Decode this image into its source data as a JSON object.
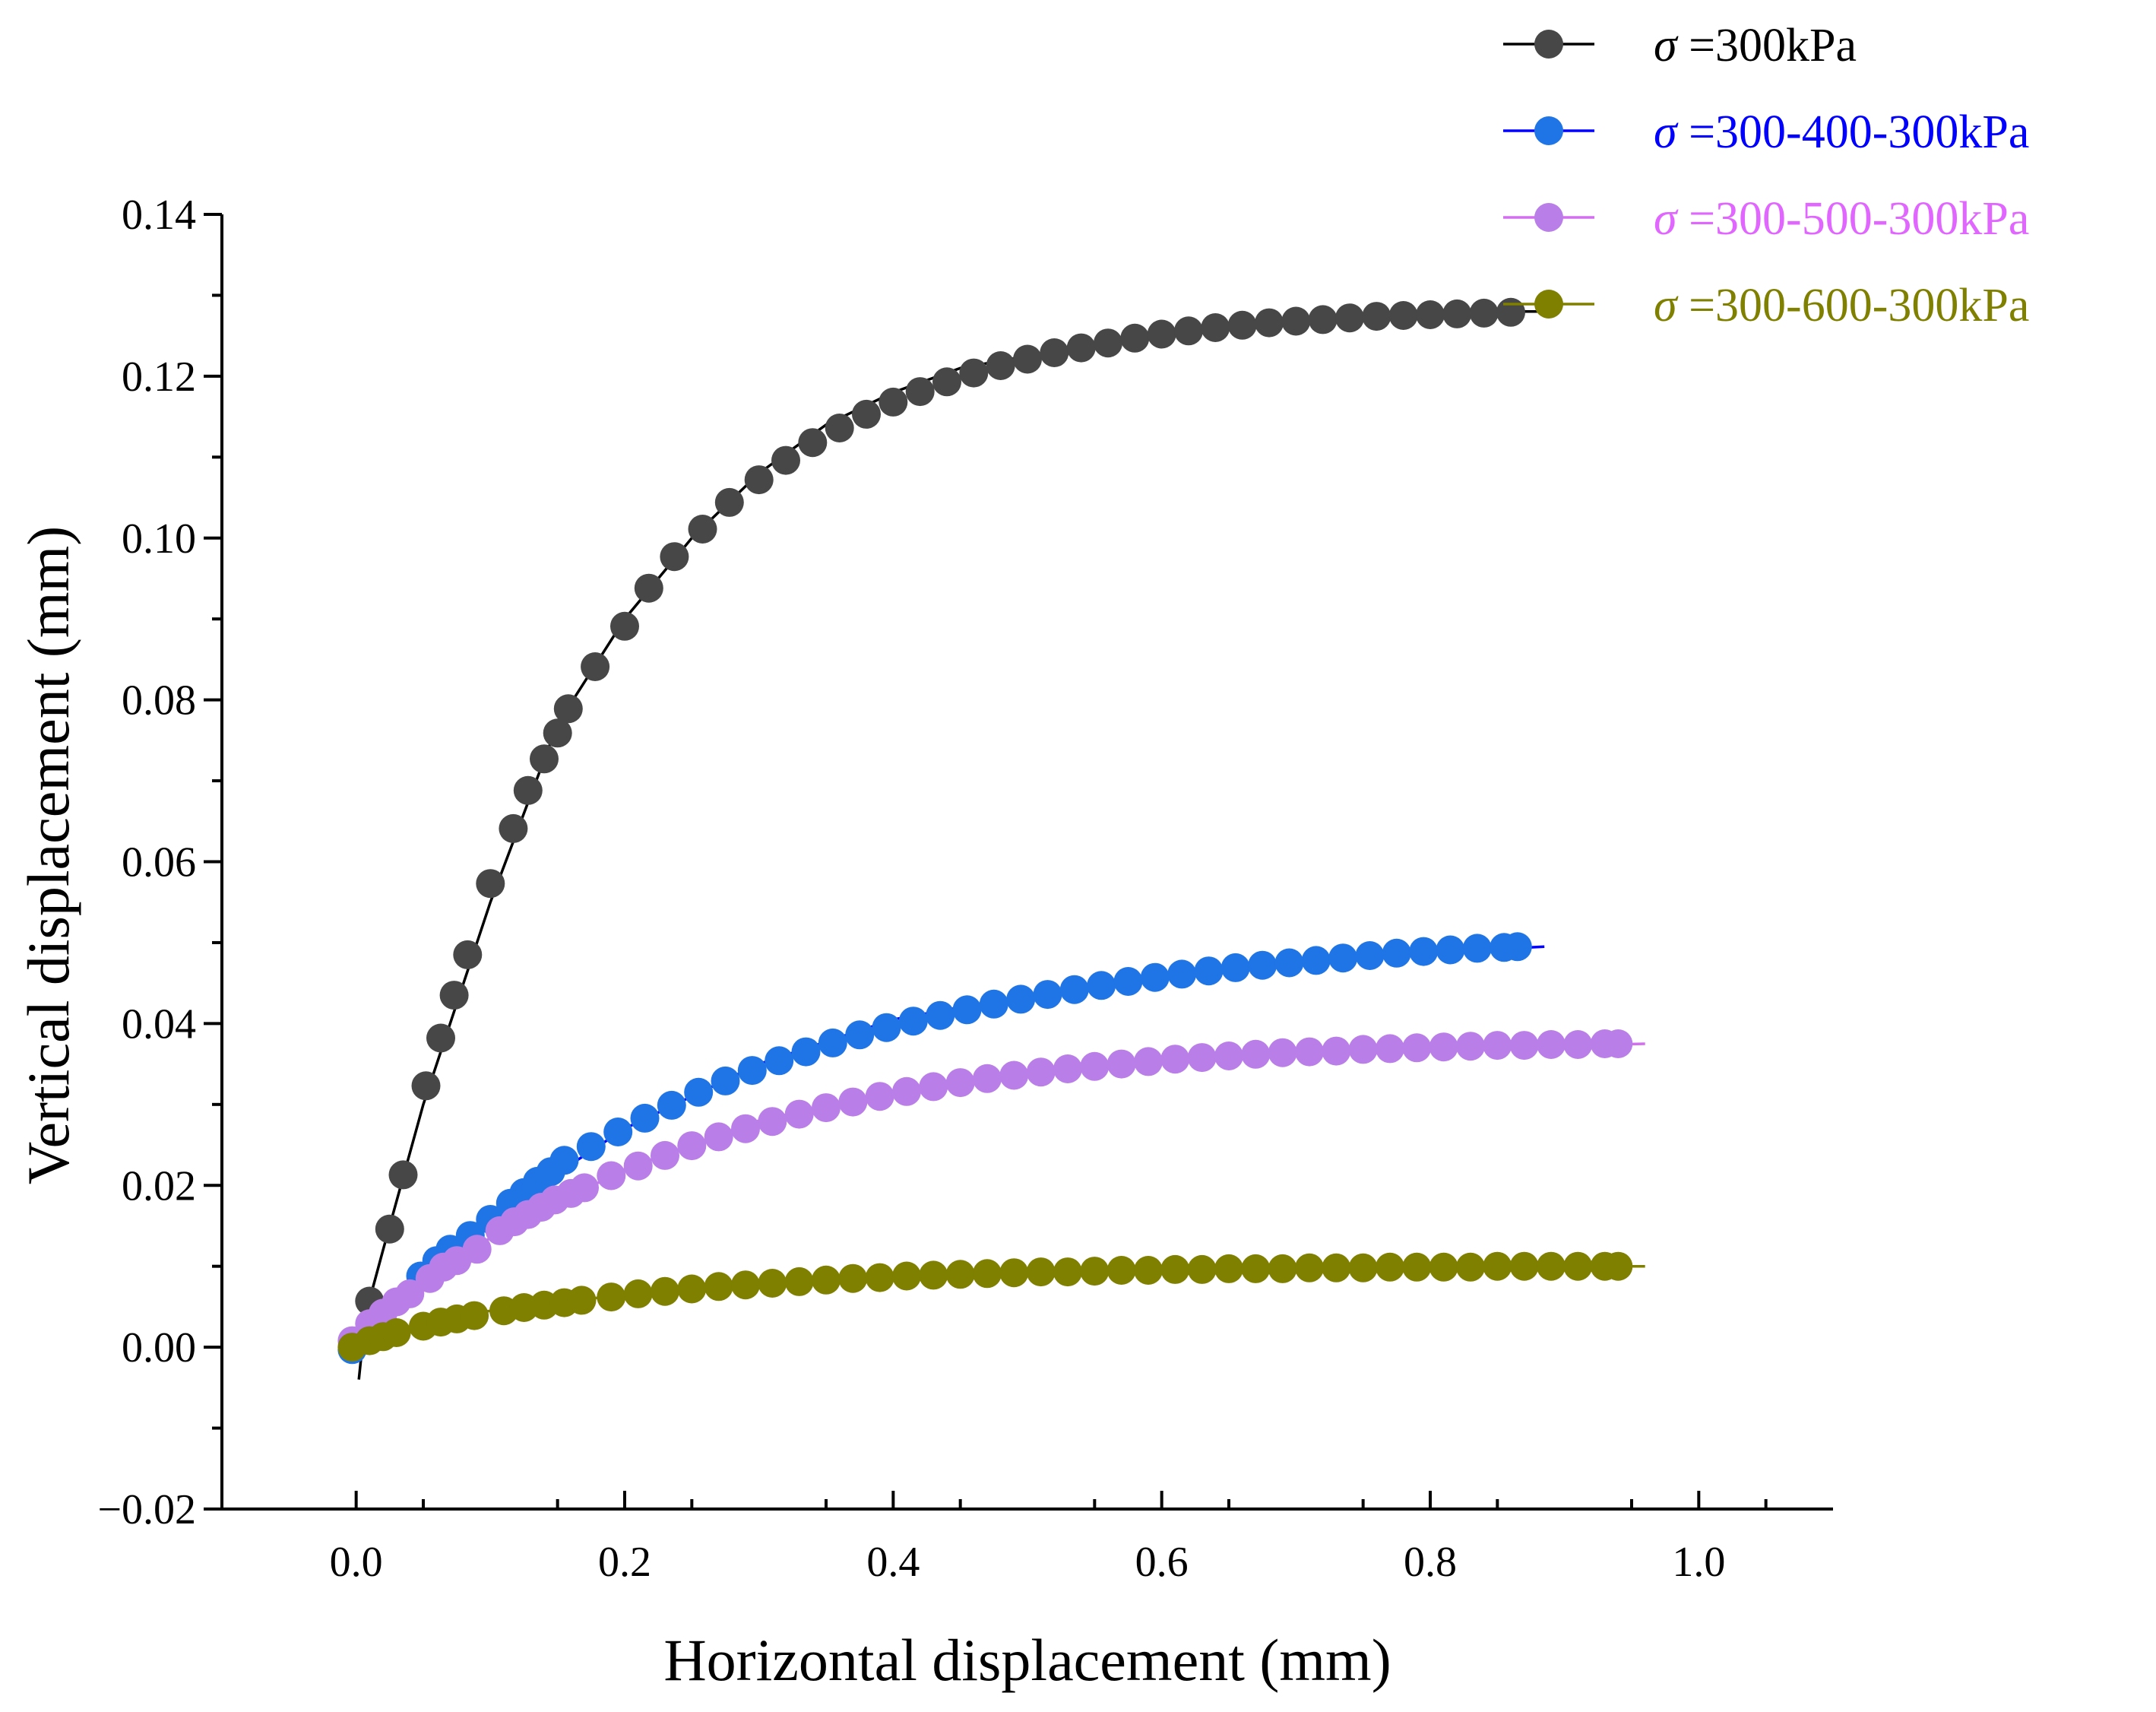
{
  "chart_data": {
    "type": "line",
    "title": "",
    "xlabel": "Horizontal displacement (mm)",
    "ylabel": "Vertical displacement (mm)",
    "xlim": [
      -0.1,
      1.1
    ],
    "ylim": [
      -0.02,
      0.14
    ],
    "xticks": [
      0.0,
      0.2,
      0.4,
      0.6,
      0.8,
      1.0
    ],
    "xtick_labels": [
      "0.0",
      "0.2",
      "0.4",
      "0.6",
      "0.8",
      "1.0"
    ],
    "yticks": [
      -0.02,
      0.0,
      0.02,
      0.04,
      0.06,
      0.08,
      0.1,
      0.12,
      0.14
    ],
    "ytick_labels": [
      "−0.02",
      "0.00",
      "0.02",
      "0.04",
      "0.06",
      "0.08",
      "0.10",
      "0.12",
      "0.14"
    ],
    "grid": false,
    "legend_position": "top-right",
    "series": [
      {
        "name": "σ =300kPa",
        "sigma": "σ",
        "label": " =300kPa",
        "marker_color": "#474747",
        "line_color": "#000000",
        "text_color": "#000000",
        "line_x": [
          0.002,
          0.007,
          0.02,
          0.05,
          0.1,
          0.15,
          0.2,
          0.25,
          0.3,
          0.35,
          0.4,
          0.45,
          0.5,
          0.55,
          0.6,
          0.65,
          0.7,
          0.75,
          0.8,
          0.85,
          0.885
        ],
        "line_y": [
          -0.004,
          0.004,
          0.012,
          0.03,
          0.055,
          0.077,
          0.09,
          0.1,
          0.108,
          0.114,
          0.118,
          0.121,
          0.1225,
          0.124,
          0.1255,
          0.126,
          0.1265,
          0.127,
          0.1275,
          0.128,
          0.128
        ],
        "points": [
          [
            0.01,
            0.0057
          ],
          [
            0.025,
            0.0146
          ],
          [
            0.035,
            0.0213
          ],
          [
            0.052,
            0.0323
          ],
          [
            0.063,
            0.0382
          ],
          [
            0.073,
            0.0435
          ],
          [
            0.083,
            0.0485
          ],
          [
            0.1,
            0.0573
          ],
          [
            0.117,
            0.0641
          ],
          [
            0.128,
            0.0688
          ],
          [
            0.14,
            0.0727
          ],
          [
            0.15,
            0.0759
          ],
          [
            0.158,
            0.0789
          ],
          [
            0.178,
            0.0841
          ],
          [
            0.2,
            0.0891
          ],
          [
            0.218,
            0.0938
          ],
          [
            0.237,
            0.0977
          ],
          [
            0.258,
            0.1011
          ],
          [
            0.278,
            0.1044
          ],
          [
            0.3,
            0.1072
          ],
          [
            0.32,
            0.1096
          ],
          [
            0.34,
            0.1118
          ],
          [
            0.36,
            0.1136
          ],
          [
            0.38,
            0.1153
          ],
          [
            0.4,
            0.1168
          ],
          [
            0.42,
            0.1181
          ],
          [
            0.44,
            0.1193
          ],
          [
            0.46,
            0.1204
          ],
          [
            0.48,
            0.1213
          ],
          [
            0.5,
            0.1221
          ],
          [
            0.52,
            0.1229
          ],
          [
            0.54,
            0.1235
          ],
          [
            0.56,
            0.1241
          ],
          [
            0.58,
            0.1247
          ],
          [
            0.6,
            0.1252
          ],
          [
            0.62,
            0.1256
          ],
          [
            0.64,
            0.126
          ],
          [
            0.66,
            0.1263
          ],
          [
            0.68,
            0.1266
          ],
          [
            0.7,
            0.1268
          ],
          [
            0.72,
            0.127
          ],
          [
            0.74,
            0.1272
          ],
          [
            0.76,
            0.1274
          ],
          [
            0.78,
            0.1275
          ],
          [
            0.8,
            0.1276
          ],
          [
            0.82,
            0.1277
          ],
          [
            0.84,
            0.1278
          ],
          [
            0.86,
            0.1279
          ]
        ]
      },
      {
        "name": "σ =300-400-300kPa",
        "sigma": "σ",
        "label": " =300-400-300kPa",
        "marker_color": "#1f75e6",
        "line_color": "#0000ff",
        "text_color": "#0000ff",
        "line_x": [
          -0.003,
          0.03,
          0.1,
          0.2,
          0.3,
          0.4,
          0.5,
          0.6,
          0.7,
          0.8,
          0.885
        ],
        "line_y": [
          -0.001,
          0.006,
          0.016,
          0.027,
          0.035,
          0.0405,
          0.0435,
          0.0462,
          0.0478,
          0.0488,
          0.0495
        ],
        "points": [
          [
            -0.003,
            -0.0003
          ],
          [
            0.048,
            0.0088
          ],
          [
            0.06,
            0.0107
          ],
          [
            0.07,
            0.0121
          ],
          [
            0.085,
            0.0138
          ],
          [
            0.1,
            0.0158
          ],
          [
            0.115,
            0.0178
          ],
          [
            0.125,
            0.0191
          ],
          [
            0.135,
            0.0205
          ],
          [
            0.145,
            0.0217
          ],
          [
            0.155,
            0.0231
          ],
          [
            0.175,
            0.0248
          ],
          [
            0.195,
            0.0266
          ],
          [
            0.215,
            0.0283
          ],
          [
            0.235,
            0.0299
          ],
          [
            0.255,
            0.0315
          ],
          [
            0.275,
            0.0329
          ],
          [
            0.295,
            0.0342
          ],
          [
            0.315,
            0.0354
          ],
          [
            0.335,
            0.0365
          ],
          [
            0.355,
            0.0376
          ],
          [
            0.375,
            0.0386
          ],
          [
            0.395,
            0.0395
          ],
          [
            0.415,
            0.0403
          ],
          [
            0.435,
            0.041
          ],
          [
            0.455,
            0.0417
          ],
          [
            0.475,
            0.0424
          ],
          [
            0.495,
            0.043
          ],
          [
            0.515,
            0.0436
          ],
          [
            0.535,
            0.0442
          ],
          [
            0.555,
            0.0447
          ],
          [
            0.575,
            0.0452
          ],
          [
            0.595,
            0.0457
          ],
          [
            0.615,
            0.0461
          ],
          [
            0.635,
            0.0465
          ],
          [
            0.655,
            0.0469
          ],
          [
            0.675,
            0.0472
          ],
          [
            0.695,
            0.0475
          ],
          [
            0.715,
            0.0478
          ],
          [
            0.735,
            0.0481
          ],
          [
            0.755,
            0.0484
          ],
          [
            0.775,
            0.0487
          ],
          [
            0.795,
            0.0489
          ],
          [
            0.815,
            0.0491
          ],
          [
            0.835,
            0.0493
          ],
          [
            0.855,
            0.0494
          ],
          [
            0.865,
            0.0495
          ]
        ]
      },
      {
        "name": "σ =300-500-300kPa",
        "sigma": "σ",
        "label": " =300-500-300kPa",
        "marker_color": "#b97ee8",
        "line_color": "#d36ef0",
        "text_color": "#e066ff",
        "line_x": [
          -0.003,
          0.03,
          0.1,
          0.2,
          0.3,
          0.4,
          0.5,
          0.6,
          0.7,
          0.8,
          0.9,
          0.96
        ],
        "line_y": [
          0.0,
          0.006,
          0.0135,
          0.022,
          0.028,
          0.0315,
          0.0338,
          0.0352,
          0.0362,
          0.0368,
          0.0373,
          0.0375
        ],
        "points": [
          [
            -0.003,
            0.0008
          ],
          [
            0.01,
            0.0029
          ],
          [
            0.02,
            0.0042
          ],
          [
            0.03,
            0.0056
          ],
          [
            0.04,
            0.0066
          ],
          [
            0.055,
            0.0085
          ],
          [
            0.065,
            0.0099
          ],
          [
            0.075,
            0.0107
          ],
          [
            0.09,
            0.0121
          ],
          [
            0.107,
            0.0144
          ],
          [
            0.118,
            0.0155
          ],
          [
            0.128,
            0.0164
          ],
          [
            0.138,
            0.0173
          ],
          [
            0.148,
            0.0182
          ],
          [
            0.16,
            0.019
          ],
          [
            0.17,
            0.0197
          ],
          [
            0.19,
            0.0212
          ],
          [
            0.21,
            0.0224
          ],
          [
            0.23,
            0.0237
          ],
          [
            0.25,
            0.0249
          ],
          [
            0.27,
            0.026
          ],
          [
            0.29,
            0.027
          ],
          [
            0.31,
            0.0279
          ],
          [
            0.33,
            0.0288
          ],
          [
            0.35,
            0.0296
          ],
          [
            0.37,
            0.0303
          ],
          [
            0.39,
            0.031
          ],
          [
            0.41,
            0.0316
          ],
          [
            0.43,
            0.0322
          ],
          [
            0.45,
            0.0327
          ],
          [
            0.47,
            0.0332
          ],
          [
            0.49,
            0.0336
          ],
          [
            0.51,
            0.034
          ],
          [
            0.53,
            0.0344
          ],
          [
            0.55,
            0.0347
          ],
          [
            0.57,
            0.035
          ],
          [
            0.59,
            0.0353
          ],
          [
            0.61,
            0.0356
          ],
          [
            0.63,
            0.0358
          ],
          [
            0.65,
            0.036
          ],
          [
            0.67,
            0.0362
          ],
          [
            0.69,
            0.0364
          ],
          [
            0.71,
            0.0365
          ],
          [
            0.73,
            0.0366
          ],
          [
            0.75,
            0.0368
          ],
          [
            0.77,
            0.0369
          ],
          [
            0.79,
            0.037
          ],
          [
            0.81,
            0.0371
          ],
          [
            0.83,
            0.0372
          ],
          [
            0.85,
            0.0373
          ],
          [
            0.87,
            0.0373
          ],
          [
            0.89,
            0.0374
          ],
          [
            0.91,
            0.0374
          ],
          [
            0.93,
            0.0375
          ],
          [
            0.94,
            0.0375
          ]
        ]
      },
      {
        "name": "σ =300-600-300kPa",
        "sigma": "σ",
        "label": " =300-600-300kPa",
        "marker_color": "#7f7f00",
        "line_color": "#7f7f00",
        "text_color": "#7f7f00",
        "line_x": [
          -0.003,
          0.05,
          0.1,
          0.2,
          0.3,
          0.4,
          0.5,
          0.6,
          0.7,
          0.8,
          0.9,
          0.96
        ],
        "line_y": [
          0.0,
          0.003,
          0.0045,
          0.0065,
          0.0078,
          0.0087,
          0.0093,
          0.0096,
          0.0098,
          0.0099,
          0.01,
          0.01
        ],
        "points": [
          [
            -0.003,
            0.0
          ],
          [
            0.01,
            0.0008
          ],
          [
            0.02,
            0.0013
          ],
          [
            0.03,
            0.0018
          ],
          [
            0.05,
            0.0026
          ],
          [
            0.063,
            0.0031
          ],
          [
            0.075,
            0.0035
          ],
          [
            0.088,
            0.0039
          ],
          [
            0.11,
            0.0045
          ],
          [
            0.125,
            0.0049
          ],
          [
            0.14,
            0.0052
          ],
          [
            0.155,
            0.0055
          ],
          [
            0.168,
            0.0058
          ],
          [
            0.19,
            0.0062
          ],
          [
            0.21,
            0.0066
          ],
          [
            0.23,
            0.0069
          ],
          [
            0.25,
            0.0072
          ],
          [
            0.27,
            0.0075
          ],
          [
            0.29,
            0.0077
          ],
          [
            0.31,
            0.0079
          ],
          [
            0.33,
            0.0081
          ],
          [
            0.35,
            0.0083
          ],
          [
            0.37,
            0.0085
          ],
          [
            0.39,
            0.0086
          ],
          [
            0.41,
            0.0088
          ],
          [
            0.43,
            0.0089
          ],
          [
            0.45,
            0.009
          ],
          [
            0.47,
            0.0091
          ],
          [
            0.49,
            0.0092
          ],
          [
            0.51,
            0.0093
          ],
          [
            0.53,
            0.0093
          ],
          [
            0.55,
            0.0094
          ],
          [
            0.57,
            0.0095
          ],
          [
            0.59,
            0.0095
          ],
          [
            0.61,
            0.0096
          ],
          [
            0.63,
            0.0096
          ],
          [
            0.65,
            0.0097
          ],
          [
            0.67,
            0.0097
          ],
          [
            0.69,
            0.0097
          ],
          [
            0.71,
            0.0098
          ],
          [
            0.73,
            0.0098
          ],
          [
            0.75,
            0.0098
          ],
          [
            0.77,
            0.0099
          ],
          [
            0.79,
            0.0099
          ],
          [
            0.81,
            0.0099
          ],
          [
            0.83,
            0.0099
          ],
          [
            0.85,
            0.01
          ],
          [
            0.87,
            0.01
          ],
          [
            0.89,
            0.01
          ],
          [
            0.91,
            0.01
          ],
          [
            0.93,
            0.01
          ],
          [
            0.94,
            0.01
          ]
        ]
      }
    ]
  }
}
